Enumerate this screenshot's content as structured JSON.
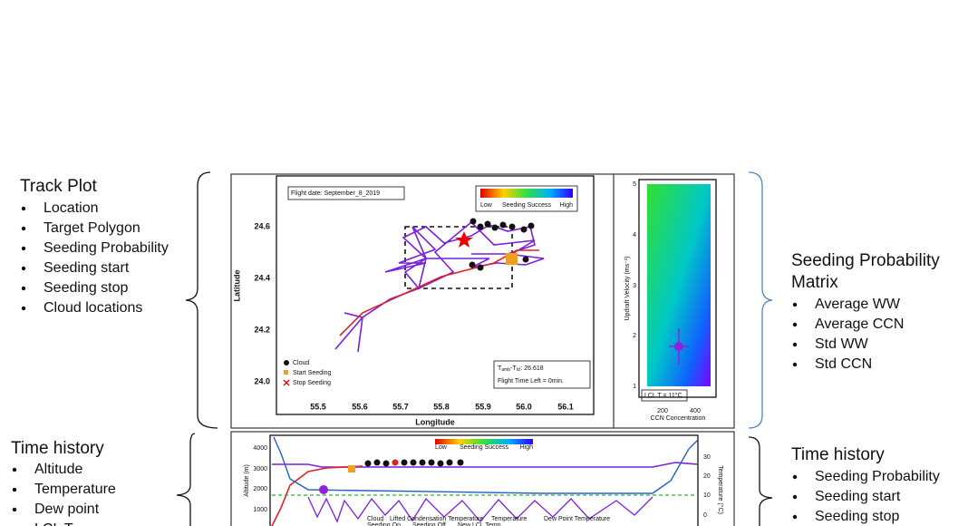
{
  "track_section": {
    "title": "Track Plot",
    "bullets": [
      "Location",
      "Target Polygon",
      "Seeding Probability",
      "Seeding start",
      "Seeding stop",
      "Cloud locations"
    ]
  },
  "track_plot": {
    "flight_date": "Flight date: September_8_2019",
    "colorbar": {
      "low": "Low",
      "label": "Seeding Success",
      "high": "High"
    },
    "y_label": "Latitude",
    "x_label": "Longitude",
    "y_ticks": [
      "24.6",
      "24.4",
      "24.2",
      "24.0"
    ],
    "x_ticks": [
      "55.5",
      "55.6",
      "55.7",
      "55.8",
      "55.9",
      "56.0",
      "56.1"
    ],
    "legend": [
      "Cloud",
      "Start Seeding",
      "Stop Seeding"
    ],
    "info": {
      "t": "T",
      "sub1": "amb",
      "minus": "-T",
      "sub2": "lcl",
      "rest": ": 26.618",
      "time": "Flight Time Left = 0min."
    }
  },
  "matrix_plot": {
    "y_label": "Updraft Velocity (ms⁻¹)",
    "y_ticks": [
      "5",
      "4",
      "3",
      "2",
      "1"
    ],
    "x_ticks": [
      "200",
      "400"
    ],
    "x_label": "CCN Concentration",
    "lcl": "LCL T = 11°C"
  },
  "matrix_section": {
    "title": [
      "Seeding Probability",
      "Matrix"
    ],
    "bullets": [
      "Average WW",
      "Average CCN",
      "Std WW",
      "Std CCN"
    ]
  },
  "time_left": {
    "title": "Time history",
    "bullets": [
      "Altitude",
      "Temperature",
      "Dew point",
      "LCL T"
    ]
  },
  "time_plot": {
    "y_label": "Altitude (m)",
    "y_ticks": [
      "4000",
      "3000",
      "2000",
      "1000"
    ],
    "y2_label": "Temperature (°C)",
    "y2_ticks": [
      "30",
      "20",
      "10",
      "0"
    ],
    "colorbar": {
      "low": "Low",
      "label": "Seeding Success",
      "high": "High"
    },
    "legend": [
      "Cloud",
      "Lifted Condensation Temperature",
      "Temperature",
      "Dew Point Temperature",
      "Seeding On",
      "Seeding Off",
      "New LCL Temp"
    ]
  },
  "time_right": {
    "title": "Time history",
    "bullets": [
      "Seeding Probability",
      "Seeding start",
      "Seeding stop"
    ]
  }
}
